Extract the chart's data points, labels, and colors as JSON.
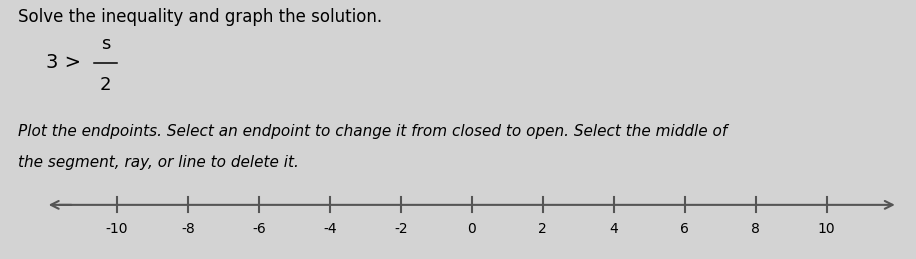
{
  "title": "Solve the inequality and graph the solution.",
  "inequality_text": "3 >",
  "frac_num": "s",
  "frac_den": "2",
  "instruction_line1": "Plot the endpoints. Select an endpoint to change it from closed to open. Select the middle of",
  "instruction_line2": "the segment, ray, or line to delete it.",
  "axis_ticks": [
    -10,
    -8,
    -6,
    -4,
    -2,
    0,
    2,
    4,
    6,
    8,
    10
  ],
  "axis_min": -12.0,
  "axis_max": 12.0,
  "background_color": "#d3d3d3",
  "title_fontsize": 12,
  "instruction_fontsize": 11,
  "tick_fontsize": 10,
  "ineq_fontsize": 14
}
